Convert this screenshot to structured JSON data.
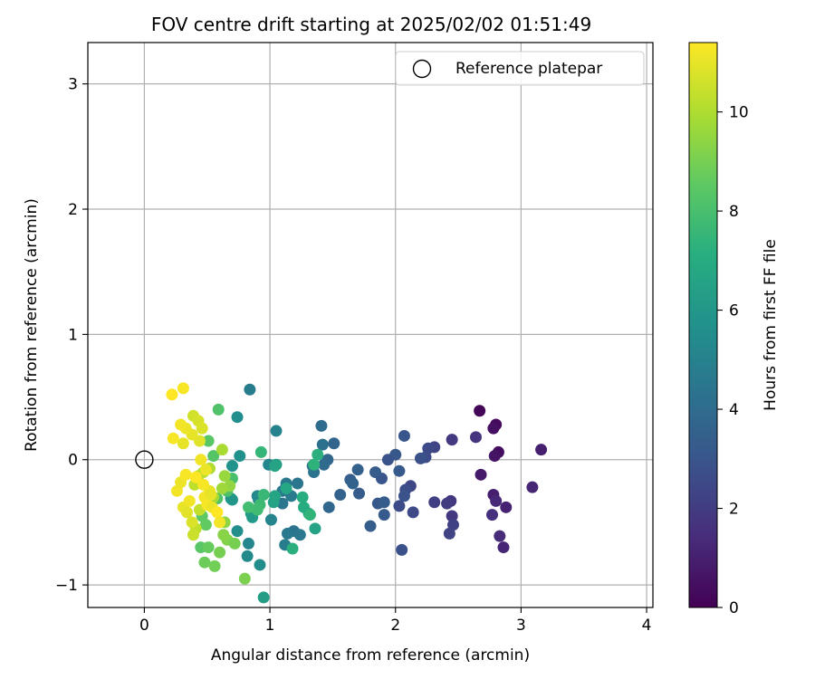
{
  "chart_data": {
    "type": "scatter",
    "title": "FOV centre drift starting at 2025/02/02 01:51:49",
    "xlabel": "Angular distance from reference (arcmin)",
    "ylabel": "Rotation from reference (arcmin)",
    "xlim": [
      -0.45,
      4.05
    ],
    "ylim": [
      -1.18,
      3.33
    ],
    "xticks": [
      0,
      1,
      2,
      3,
      4
    ],
    "yticks": [
      -1,
      0,
      1,
      2,
      3
    ],
    "xtick_labels": [
      "0",
      "1",
      "2",
      "3",
      "4"
    ],
    "ytick_labels": [
      "−1",
      "0",
      "1",
      "2",
      "3"
    ],
    "grid": true,
    "legend": {
      "position": "top-right",
      "entries": [
        {
          "label": "Reference platepar",
          "marker": "open-circle"
        }
      ]
    },
    "reference_point": {
      "x": 0,
      "y": 0
    },
    "colorbar": {
      "label": "Hours from first FF file",
      "range": [
        0,
        11.4
      ],
      "ticks": [
        0,
        2,
        4,
        6,
        8,
        10
      ],
      "tick_labels": [
        "0",
        "2",
        "4",
        "6",
        "8",
        "10"
      ],
      "colormap": "viridis"
    },
    "series": [
      {
        "color_value_key": "c",
        "points": [
          {
            "x": 2.67,
            "y": 0.39,
            "c": 0.1
          },
          {
            "x": 2.8,
            "y": 0.28,
            "c": 0.3
          },
          {
            "x": 2.78,
            "y": 0.25,
            "c": 0.5
          },
          {
            "x": 2.82,
            "y": 0.06,
            "c": 0.4
          },
          {
            "x": 2.79,
            "y": 0.03,
            "c": 0.6
          },
          {
            "x": 2.68,
            "y": -0.12,
            "c": 0.8
          },
          {
            "x": 3.16,
            "y": 0.08,
            "c": 1.0
          },
          {
            "x": 3.09,
            "y": -0.22,
            "c": 1.2
          },
          {
            "x": 2.78,
            "y": -0.28,
            "c": 1.0
          },
          {
            "x": 2.8,
            "y": -0.33,
            "c": 1.3
          },
          {
            "x": 2.88,
            "y": -0.38,
            "c": 1.1
          },
          {
            "x": 2.77,
            "y": -0.44,
            "c": 1.5
          },
          {
            "x": 2.83,
            "y": -0.61,
            "c": 1.4
          },
          {
            "x": 2.86,
            "y": -0.7,
            "c": 1.2
          },
          {
            "x": 2.64,
            "y": 0.18,
            "c": 1.7
          },
          {
            "x": 2.45,
            "y": 0.16,
            "c": 1.9
          },
          {
            "x": 2.44,
            "y": -0.33,
            "c": 1.8
          },
          {
            "x": 2.41,
            "y": -0.35,
            "c": 2.0
          },
          {
            "x": 2.31,
            "y": -0.34,
            "c": 2.1
          },
          {
            "x": 2.45,
            "y": -0.45,
            "c": 1.9
          },
          {
            "x": 2.46,
            "y": -0.52,
            "c": 2.2
          },
          {
            "x": 2.43,
            "y": -0.59,
            "c": 2.3
          },
          {
            "x": 2.31,
            "y": 0.1,
            "c": 2.3
          },
          {
            "x": 2.26,
            "y": 0.09,
            "c": 2.5
          },
          {
            "x": 2.24,
            "y": 0.02,
            "c": 2.6
          },
          {
            "x": 2.2,
            "y": 0.01,
            "c": 2.8
          },
          {
            "x": 2.12,
            "y": -0.21,
            "c": 2.4
          },
          {
            "x": 2.08,
            "y": -0.24,
            "c": 2.7
          },
          {
            "x": 2.07,
            "y": -0.29,
            "c": 2.9
          },
          {
            "x": 2.03,
            "y": -0.37,
            "c": 2.6
          },
          {
            "x": 2.14,
            "y": -0.42,
            "c": 2.5
          },
          {
            "x": 2.05,
            "y": -0.72,
            "c": 2.8
          },
          {
            "x": 2.07,
            "y": 0.19,
            "c": 3.0
          },
          {
            "x": 2.0,
            "y": 0.04,
            "c": 3.1
          },
          {
            "x": 1.94,
            "y": 0.0,
            "c": 2.9
          },
          {
            "x": 2.03,
            "y": -0.09,
            "c": 3.2
          },
          {
            "x": 1.89,
            "y": -0.15,
            "c": 3.0
          },
          {
            "x": 1.84,
            "y": -0.1,
            "c": 3.3
          },
          {
            "x": 1.86,
            "y": -0.35,
            "c": 3.1
          },
          {
            "x": 1.91,
            "y": -0.34,
            "c": 3.3
          },
          {
            "x": 1.91,
            "y": -0.44,
            "c": 3.2
          },
          {
            "x": 1.8,
            "y": -0.53,
            "c": 3.4
          },
          {
            "x": 1.7,
            "y": -0.08,
            "c": 3.5
          },
          {
            "x": 1.64,
            "y": -0.16,
            "c": 3.4
          },
          {
            "x": 1.66,
            "y": -0.19,
            "c": 3.6
          },
          {
            "x": 1.71,
            "y": -0.27,
            "c": 3.3
          },
          {
            "x": 1.56,
            "y": -0.28,
            "c": 3.6
          },
          {
            "x": 1.51,
            "y": 0.13,
            "c": 3.7
          },
          {
            "x": 1.46,
            "y": 0.0,
            "c": 3.8
          },
          {
            "x": 1.43,
            "y": -0.04,
            "c": 3.9
          },
          {
            "x": 1.47,
            "y": -0.38,
            "c": 3.8
          },
          {
            "x": 1.41,
            "y": 0.27,
            "c": 4.0
          },
          {
            "x": 1.42,
            "y": 0.12,
            "c": 4.2
          },
          {
            "x": 1.34,
            "y": -0.05,
            "c": 4.1
          },
          {
            "x": 1.35,
            "y": -0.1,
            "c": 4.3
          },
          {
            "x": 1.22,
            "y": -0.19,
            "c": 4.4
          },
          {
            "x": 1.13,
            "y": -0.19,
            "c": 4.6
          },
          {
            "x": 1.1,
            "y": -0.25,
            "c": 4.5
          },
          {
            "x": 1.1,
            "y": -0.35,
            "c": 4.4
          },
          {
            "x": 1.17,
            "y": -0.29,
            "c": 4.7
          },
          {
            "x": 1.19,
            "y": -0.57,
            "c": 4.3
          },
          {
            "x": 1.24,
            "y": -0.6,
            "c": 4.5
          },
          {
            "x": 1.14,
            "y": -0.59,
            "c": 4.6
          },
          {
            "x": 1.12,
            "y": -0.68,
            "c": 4.8
          },
          {
            "x": 0.84,
            "y": 0.56,
            "c": 4.8
          },
          {
            "x": 1.05,
            "y": 0.23,
            "c": 5.0
          },
          {
            "x": 1.01,
            "y": -0.48,
            "c": 5.1
          },
          {
            "x": 0.99,
            "y": -0.04,
            "c": 5.2
          },
          {
            "x": 0.91,
            "y": -0.32,
            "c": 5.0
          },
          {
            "x": 0.9,
            "y": -0.29,
            "c": 5.3
          },
          {
            "x": 0.83,
            "y": -0.67,
            "c": 5.2
          },
          {
            "x": 0.82,
            "y": -0.77,
            "c": 5.4
          },
          {
            "x": 0.92,
            "y": -0.84,
            "c": 5.5
          },
          {
            "x": 0.74,
            "y": 0.34,
            "c": 5.6
          },
          {
            "x": 0.76,
            "y": 0.03,
            "c": 5.7
          },
          {
            "x": 0.7,
            "y": -0.05,
            "c": 5.8
          },
          {
            "x": 0.74,
            "y": -0.57,
            "c": 5.6
          },
          {
            "x": 0.69,
            "y": -0.31,
            "c": 5.9
          },
          {
            "x": 0.7,
            "y": -0.32,
            "c": 6.0
          },
          {
            "x": 0.86,
            "y": -0.46,
            "c": 6.1
          },
          {
            "x": 0.85,
            "y": -0.43,
            "c": 6.2
          },
          {
            "x": 0.95,
            "y": -1.1,
            "c": 6.3
          },
          {
            "x": 1.05,
            "y": -0.04,
            "c": 6.4
          },
          {
            "x": 1.04,
            "y": -0.05,
            "c": 6.6
          },
          {
            "x": 1.03,
            "y": -0.34,
            "c": 6.5
          },
          {
            "x": 1.04,
            "y": -0.29,
            "c": 6.7
          },
          {
            "x": 1.13,
            "y": -0.23,
            "c": 6.8
          },
          {
            "x": 1.36,
            "y": -0.55,
            "c": 6.6
          },
          {
            "x": 1.31,
            "y": -0.43,
            "c": 6.9
          },
          {
            "x": 1.27,
            "y": -0.38,
            "c": 7.0
          },
          {
            "x": 1.26,
            "y": -0.3,
            "c": 7.1
          },
          {
            "x": 1.38,
            "y": 0.04,
            "c": 7.2
          },
          {
            "x": 1.35,
            "y": -0.04,
            "c": 7.3
          },
          {
            "x": 1.32,
            "y": -0.44,
            "c": 7.4
          },
          {
            "x": 1.18,
            "y": -0.71,
            "c": 7.2
          },
          {
            "x": 0.93,
            "y": 0.06,
            "c": 7.5
          },
          {
            "x": 0.95,
            "y": -0.28,
            "c": 7.6
          },
          {
            "x": 0.92,
            "y": -0.36,
            "c": 7.7
          },
          {
            "x": 0.9,
            "y": -0.4,
            "c": 7.8
          },
          {
            "x": 0.83,
            "y": -0.38,
            "c": 7.9
          },
          {
            "x": 0.7,
            "y": -0.15,
            "c": 8.0
          },
          {
            "x": 0.66,
            "y": -0.25,
            "c": 8.1
          },
          {
            "x": 0.59,
            "y": 0.4,
            "c": 8.2
          },
          {
            "x": 0.55,
            "y": 0.03,
            "c": 8.3
          },
          {
            "x": 0.51,
            "y": 0.15,
            "c": 8.4
          },
          {
            "x": 0.58,
            "y": -0.31,
            "c": 8.2
          },
          {
            "x": 0.46,
            "y": -0.45,
            "c": 8.5
          },
          {
            "x": 0.49,
            "y": -0.52,
            "c": 8.6
          },
          {
            "x": 0.45,
            "y": -0.7,
            "c": 8.4
          },
          {
            "x": 0.51,
            "y": -0.7,
            "c": 8.7
          },
          {
            "x": 0.48,
            "y": -0.82,
            "c": 8.8
          },
          {
            "x": 0.56,
            "y": -0.85,
            "c": 8.9
          },
          {
            "x": 0.6,
            "y": -0.74,
            "c": 9.0
          },
          {
            "x": 0.8,
            "y": -0.95,
            "c": 9.1
          },
          {
            "x": 0.66,
            "y": -0.64,
            "c": 9.2
          },
          {
            "x": 0.72,
            "y": -0.67,
            "c": 9.0
          },
          {
            "x": 0.63,
            "y": -0.6,
            "c": 9.3
          },
          {
            "x": 0.64,
            "y": -0.5,
            "c": 9.4
          },
          {
            "x": 0.68,
            "y": -0.21,
            "c": 9.5
          },
          {
            "x": 0.64,
            "y": -0.13,
            "c": 9.6
          },
          {
            "x": 0.62,
            "y": -0.23,
            "c": 9.7
          },
          {
            "x": 0.55,
            "y": -0.3,
            "c": 9.8
          },
          {
            "x": 0.62,
            "y": 0.08,
            "c": 9.9
          },
          {
            "x": 0.52,
            "y": -0.07,
            "c": 10.0
          },
          {
            "x": 0.47,
            "y": -0.1,
            "c": 10.1
          },
          {
            "x": 0.43,
            "y": -0.13,
            "c": 10.2
          },
          {
            "x": 0.4,
            "y": -0.2,
            "c": 10.3
          },
          {
            "x": 0.44,
            "y": -0.4,
            "c": 10.4
          },
          {
            "x": 0.41,
            "y": -0.55,
            "c": 10.3
          },
          {
            "x": 0.39,
            "y": -0.6,
            "c": 10.5
          },
          {
            "x": 0.39,
            "y": 0.35,
            "c": 10.6
          },
          {
            "x": 0.43,
            "y": 0.31,
            "c": 10.7
          },
          {
            "x": 0.46,
            "y": 0.25,
            "c": 10.8
          },
          {
            "x": 0.44,
            "y": 0.15,
            "c": 10.9
          },
          {
            "x": 0.38,
            "y": 0.2,
            "c": 11.0
          },
          {
            "x": 0.33,
            "y": 0.25,
            "c": 11.1
          },
          {
            "x": 0.29,
            "y": 0.28,
            "c": 11.2
          },
          {
            "x": 0.23,
            "y": 0.17,
            "c": 11.3
          },
          {
            "x": 0.31,
            "y": 0.13,
            "c": 11.0
          },
          {
            "x": 0.31,
            "y": 0.57,
            "c": 11.3
          },
          {
            "x": 0.22,
            "y": 0.52,
            "c": 11.4
          },
          {
            "x": 0.26,
            "y": -0.25,
            "c": 11.2
          },
          {
            "x": 0.29,
            "y": -0.18,
            "c": 11.1
          },
          {
            "x": 0.33,
            "y": -0.12,
            "c": 11.3
          },
          {
            "x": 0.31,
            "y": -0.38,
            "c": 11.0
          },
          {
            "x": 0.34,
            "y": -0.42,
            "c": 10.9
          },
          {
            "x": 0.38,
            "y": -0.5,
            "c": 10.8
          },
          {
            "x": 0.45,
            "y": 0.0,
            "c": 11.2
          },
          {
            "x": 0.49,
            "y": -0.08,
            "c": 11.1
          },
          {
            "x": 0.52,
            "y": -0.25,
            "c": 11.0
          },
          {
            "x": 0.48,
            "y": -0.3,
            "c": 11.2
          },
          {
            "x": 0.5,
            "y": -0.36,
            "c": 11.3
          },
          {
            "x": 0.54,
            "y": -0.38,
            "c": 11.1
          },
          {
            "x": 0.58,
            "y": -0.42,
            "c": 11.4
          },
          {
            "x": 0.36,
            "y": -0.33,
            "c": 11.2
          },
          {
            "x": 0.41,
            "y": -0.14,
            "c": 11.4
          },
          {
            "x": 0.47,
            "y": -0.2,
            "c": 11.3
          },
          {
            "x": 0.53,
            "y": -0.28,
            "c": 11.0
          },
          {
            "x": 0.6,
            "y": -0.5,
            "c": 11.2
          }
        ]
      }
    ]
  }
}
